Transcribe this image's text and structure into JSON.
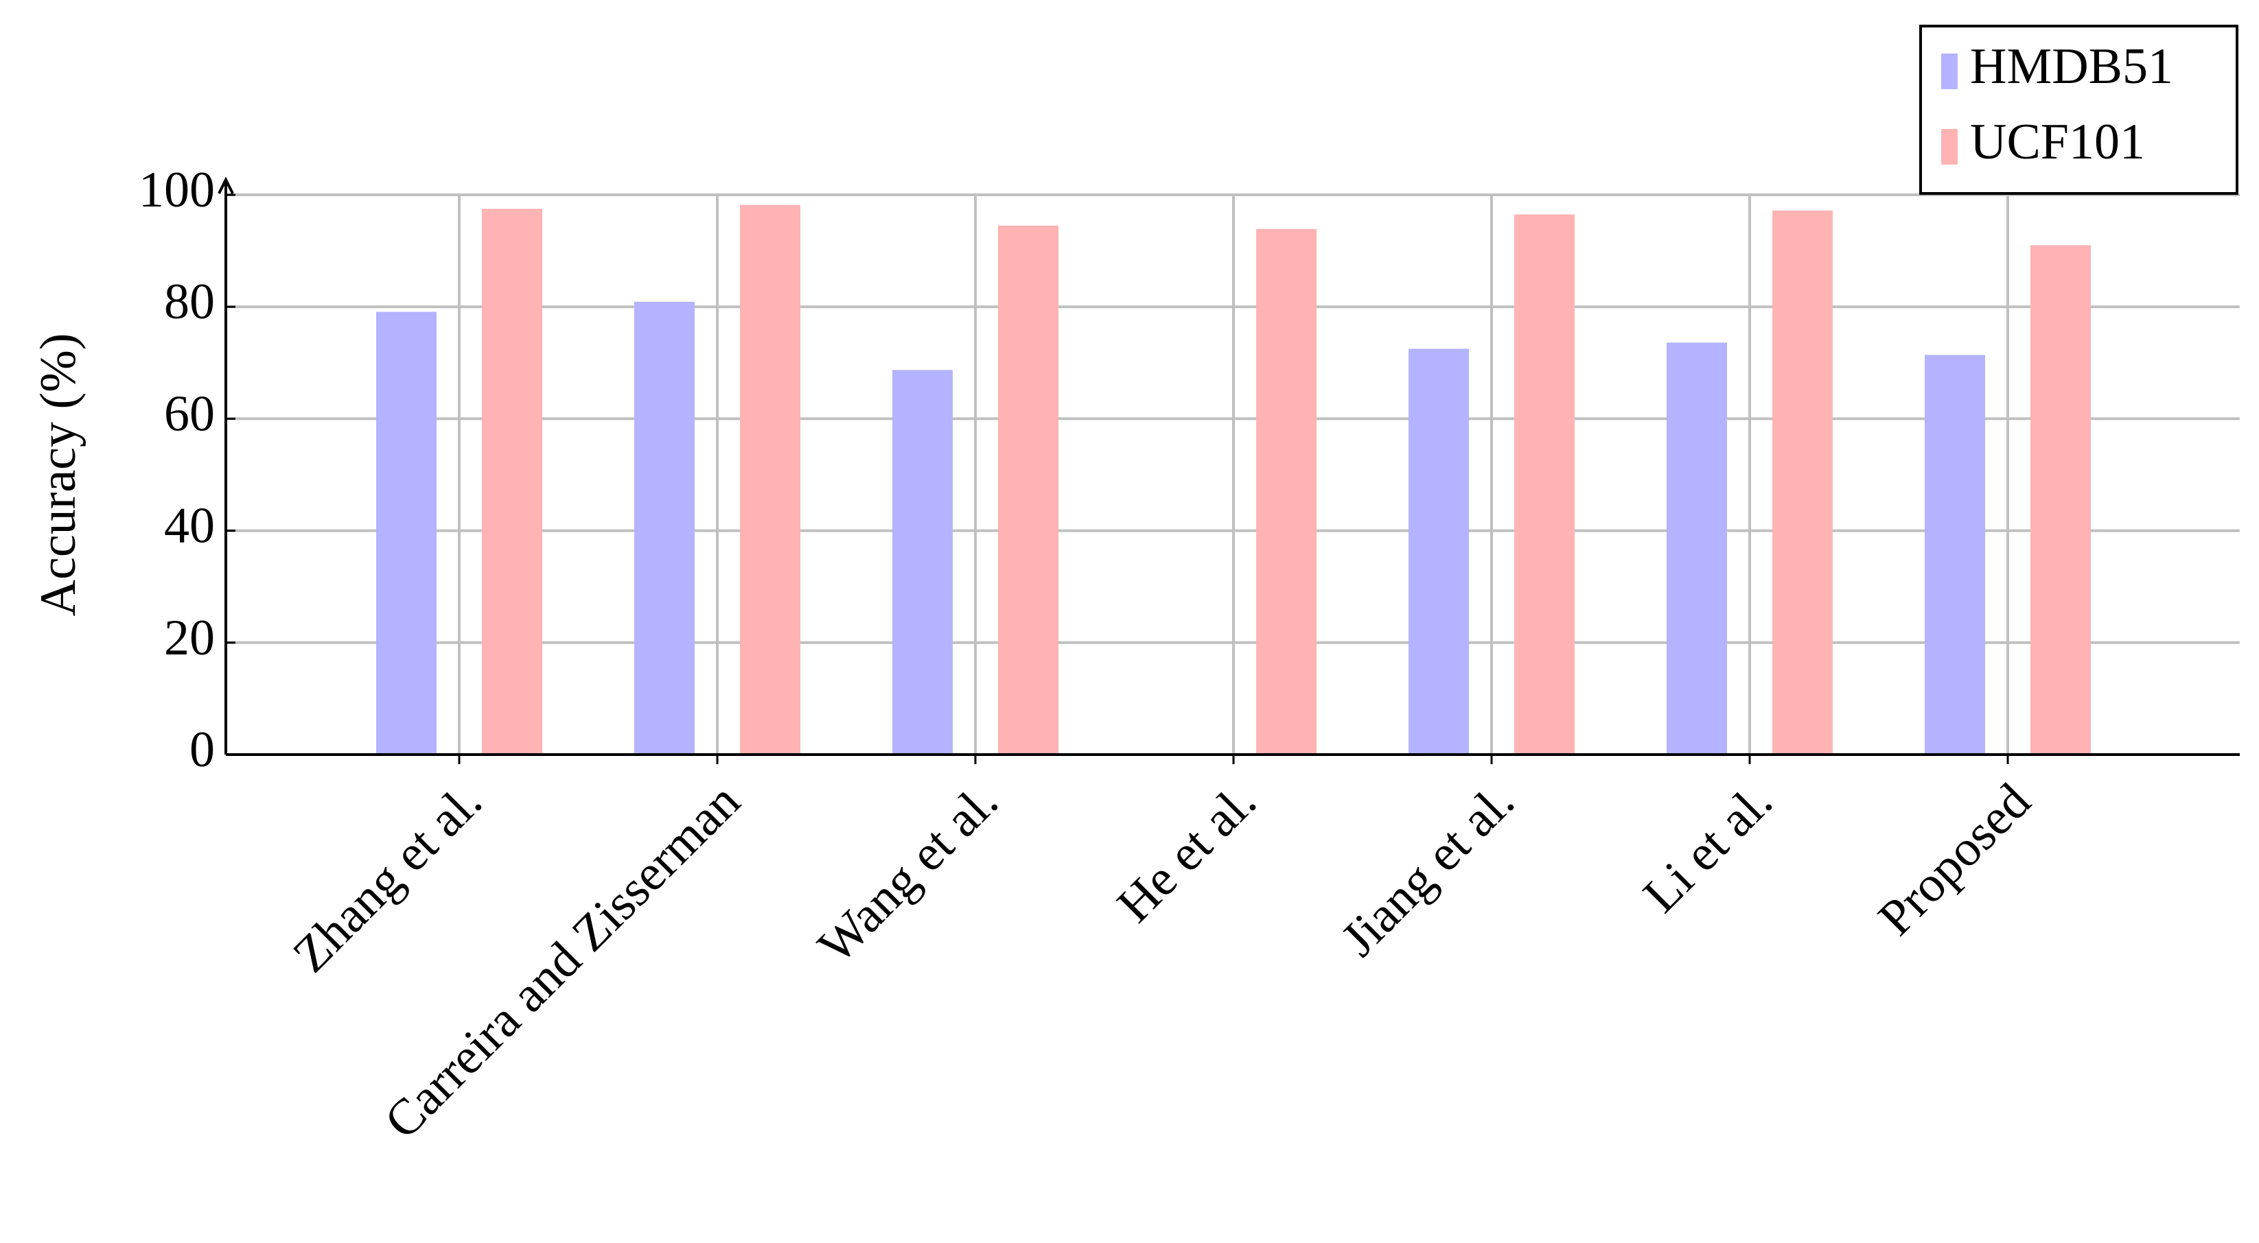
{
  "chart_data": {
    "type": "bar",
    "y_label": "Accuracy (%)",
    "categories": [
      "Zhang et al.",
      "Carreira and Zisserman",
      "Wang et al.",
      "He et al.",
      "Jiang et al.",
      "Li et al.",
      "Proposed"
    ],
    "series": [
      {
        "name": "HMDB51",
        "color": "#b3b3ff",
        "values": [
          79.1,
          80.9,
          68.7,
          0,
          72.5,
          73.6,
          71.4
        ]
      },
      {
        "name": "UCF101",
        "color": "#ffb3b3",
        "values": [
          97.5,
          98.2,
          94.5,
          93.9,
          96.5,
          97.2,
          91.0
        ]
      }
    ],
    "ylim": [
      0,
      100
    ],
    "yticks": [
      0,
      20,
      40,
      60,
      80,
      100
    ],
    "grid": true,
    "legend": "top-right"
  }
}
